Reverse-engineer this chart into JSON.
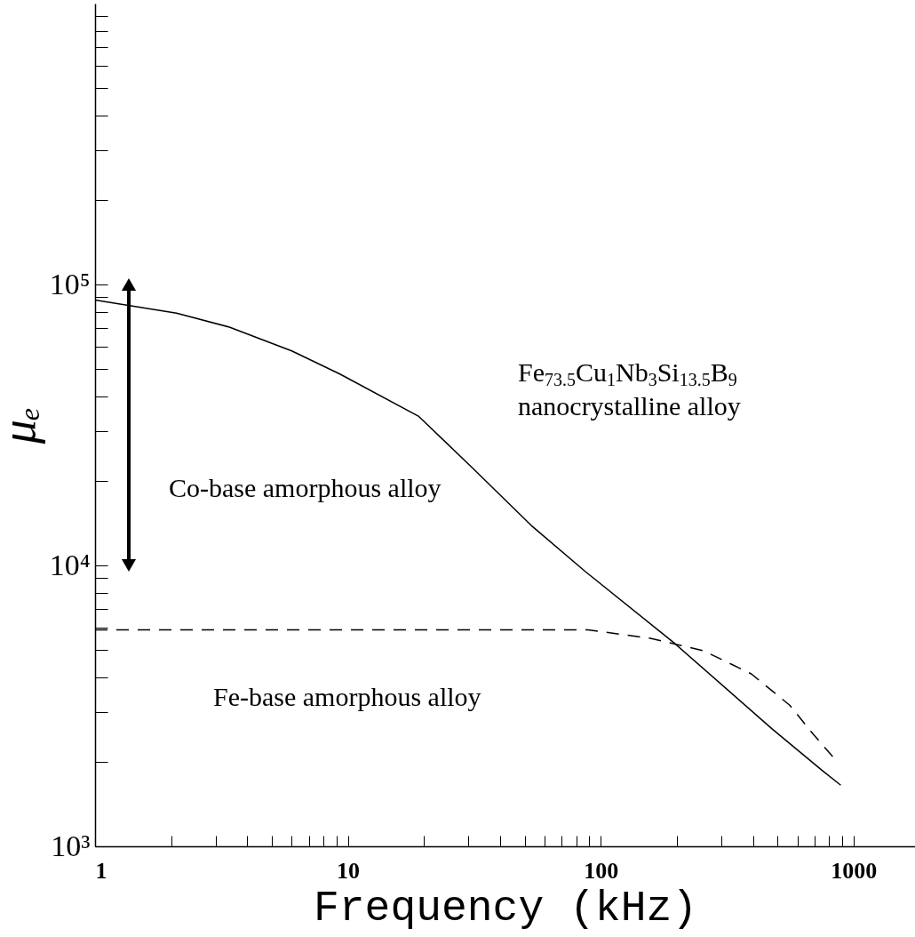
{
  "chart_data": {
    "type": "line",
    "xlabel": "Frequency (kHz)",
    "ylabel": "μₑ",
    "log": "xy",
    "grid": false,
    "xlim": [
      1,
      1750
    ],
    "ylim": [
      1000,
      1000000
    ],
    "xticks": [
      1,
      {
        "value": 2,
        "label": null
      },
      {
        "value": 3,
        "label": null
      },
      {
        "value": 4,
        "label": null
      },
      {
        "value": 5,
        "label": null
      },
      {
        "value": 6,
        "label": null
      },
      {
        "value": 7,
        "label": null
      },
      {
        "value": 8,
        "label": null
      },
      {
        "value": 9,
        "label": null
      },
      10,
      {
        "value": 20,
        "label": null
      },
      {
        "value": 30,
        "label": null
      },
      {
        "value": 40,
        "label": null
      },
      {
        "value": 50,
        "label": null
      },
      {
        "value": 60,
        "label": null
      },
      {
        "value": 70,
        "label": null
      },
      {
        "value": 80,
        "label": null
      },
      {
        "value": 90,
        "label": null
      },
      100,
      {
        "value": 200,
        "label": null
      },
      {
        "value": 300,
        "label": null
      },
      {
        "value": 400,
        "label": null
      },
      {
        "value": 500,
        "label": null
      },
      {
        "value": 600,
        "label": null
      },
      {
        "value": 700,
        "label": null
      },
      {
        "value": 800,
        "label": null
      },
      {
        "value": 900,
        "label": null
      },
      1000
    ],
    "yticks": [
      {
        "value": 1000,
        "label": "10³"
      },
      {
        "value": 2000,
        "label": null
      },
      {
        "value": 3000,
        "label": null
      },
      {
        "value": 4000,
        "label": null
      },
      {
        "value": 5000,
        "label": null
      },
      {
        "value": 6000,
        "label": null
      },
      {
        "value": 7000,
        "label": null
      },
      {
        "value": 8000,
        "label": null
      },
      {
        "value": 9000,
        "label": null
      },
      {
        "value": 10000,
        "label": "10⁴"
      },
      {
        "value": 20000,
        "label": null
      },
      {
        "value": 30000,
        "label": null
      },
      {
        "value": 40000,
        "label": null
      },
      {
        "value": 50000,
        "label": null
      },
      {
        "value": 60000,
        "label": null
      },
      {
        "value": 70000,
        "label": null
      },
      {
        "value": 80000,
        "label": null
      },
      {
        "value": 90000,
        "label": null
      },
      {
        "value": 100000,
        "label": "10⁵"
      },
      {
        "value": 200000,
        "label": null
      },
      {
        "value": 300000,
        "label": null
      },
      {
        "value": 400000,
        "label": null
      },
      {
        "value": 500000,
        "label": null
      },
      {
        "value": 600000,
        "label": null
      },
      {
        "value": 700000,
        "label": null
      },
      {
        "value": 800000,
        "label": null
      },
      {
        "value": 900000,
        "label": null
      }
    ],
    "series": [
      {
        "color": "#000000",
        "line_style": "solid",
        "marker": "none",
        "x": [
          1,
          2.1,
          3.4,
          6,
          9.3,
          19,
          31,
          53,
          87,
          195,
          476,
          753,
          890
        ],
        "values": [
          88000,
          79000,
          70500,
          58000,
          48000,
          34000,
          22300,
          13900,
          9500,
          5300,
          2620,
          1860,
          1650
        ]
      },
      {
        "color": "#000000",
        "line_style": "dashed",
        "marker": "none",
        "x": [
          1,
          10,
          89,
          157,
          255,
          394,
          559,
          697,
          834
        ],
        "values": [
          5900,
          5900,
          5900,
          5500,
          4970,
          4110,
          3180,
          2490,
          2070
        ]
      },
      {
        "color": "#000000",
        "line_style": "solid",
        "marker": "triangle",
        "x": [
          1.36,
          1.36
        ],
        "values": [
          10000,
          100000
        ]
      }
    ],
    "annotations": [
      "Fe$_{73.5}$Cu$_{1}$Nb$_{3}$Si$_{13.5}$B$_{9}$",
      "nanocrystalline alloy",
      "Co-base amorphous alloy",
      "Fe-base amorphous alloy"
    ]
  }
}
